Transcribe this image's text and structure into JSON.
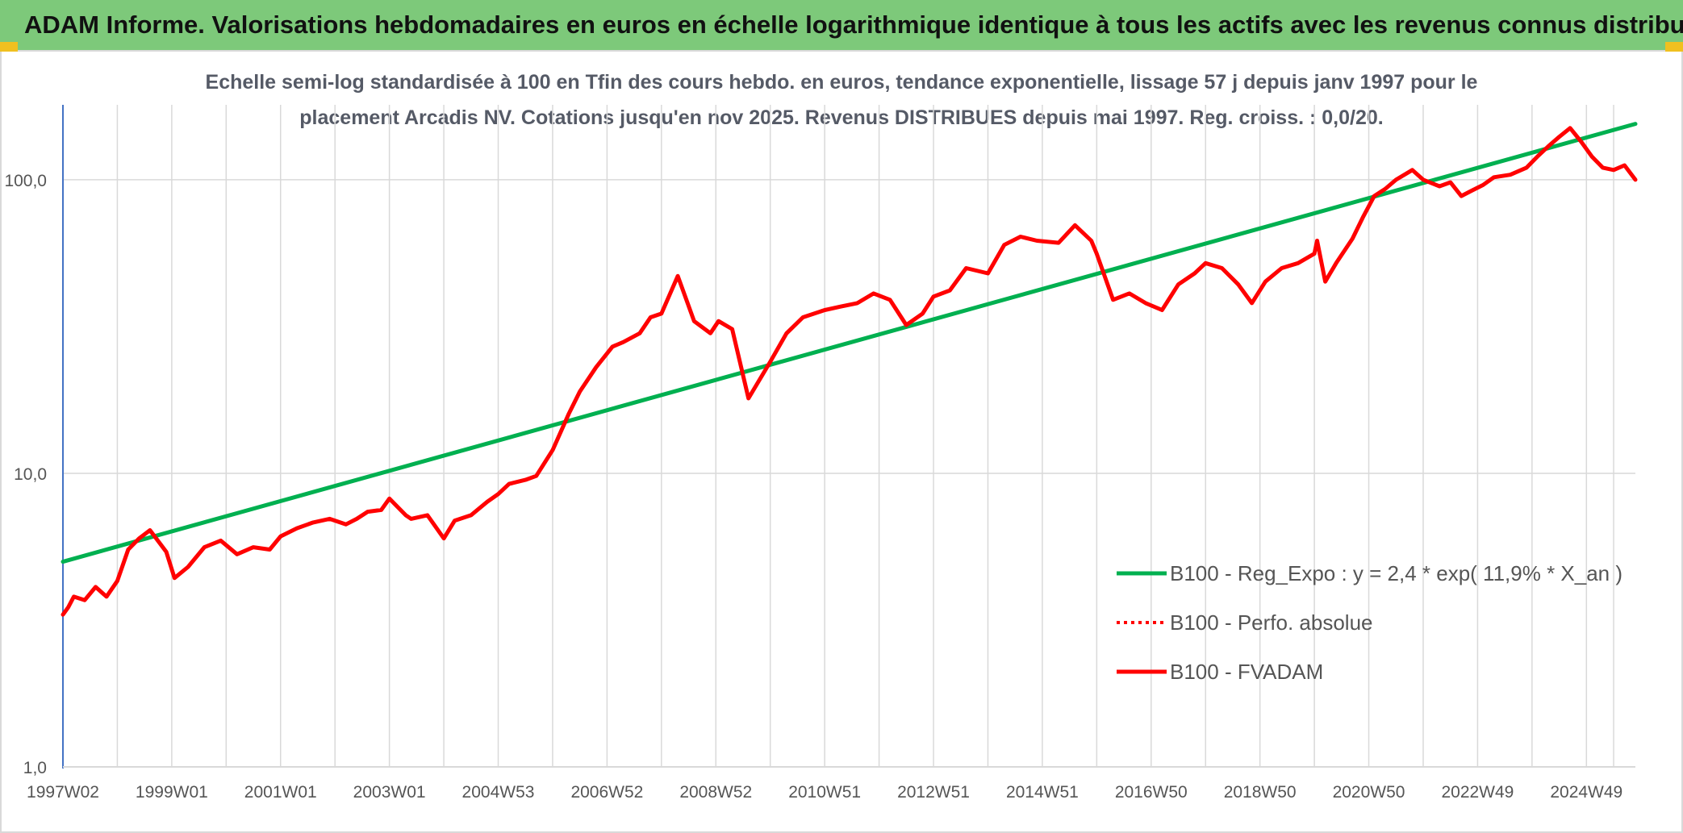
{
  "header": {
    "title": "ADAM Informe. Valorisations hebdomadaires en euros en échelle logarithmique identique à tous les actifs avec les revenus connus distribués"
  },
  "chart_data": {
    "type": "line",
    "title_line1": "Echelle semi-log standardisée à 100 en Tfin des cours hebdo. en euros, tendance exponentielle, lissage 57 j depuis janv 1997 pour le",
    "title_line2": "placement Arcadis NV. Cotations jusqu'en nov 2025. Revenus DISTRIBUES depuis mai 1997. Reg. croiss. : 0,0/20.",
    "y_scale": "log",
    "ylim": [
      1,
      180
    ],
    "y_ticks": [
      {
        "value": 1,
        "label": "1,0"
      },
      {
        "value": 10,
        "label": "10,0"
      },
      {
        "value": 100,
        "label": "100,0"
      }
    ],
    "xlim": [
      1997.0,
      2025.9
    ],
    "x_ticks": [
      {
        "value": 1997.0,
        "label": "1997W02"
      },
      {
        "value": 1999.0,
        "label": "1999W01"
      },
      {
        "value": 2001.0,
        "label": "2001W01"
      },
      {
        "value": 2003.0,
        "label": "2003W01"
      },
      {
        "value": 2005.0,
        "label": "2004W53"
      },
      {
        "value": 2007.0,
        "label": "2006W52"
      },
      {
        "value": 2009.0,
        "label": "2008W52"
      },
      {
        "value": 2011.0,
        "label": "2010W51"
      },
      {
        "value": 2013.0,
        "label": "2012W51"
      },
      {
        "value": 2015.0,
        "label": "2014W51"
      },
      {
        "value": 2017.0,
        "label": "2016W50"
      },
      {
        "value": 2019.0,
        "label": "2018W50"
      },
      {
        "value": 2021.0,
        "label": "2020W50"
      },
      {
        "value": 2023.0,
        "label": "2022W49"
      },
      {
        "value": 2025.0,
        "label": "2024W49"
      }
    ],
    "grid": true,
    "legend_position": "bottom-right",
    "series": [
      {
        "name": "B100 - Reg_Expo : y = 2,4 * exp( 11,9% * X_an )",
        "color": "#00b050",
        "style": "solid",
        "x": [
          1997.0,
          2025.9
        ],
        "y": [
          5.0,
          155.0
        ]
      },
      {
        "name": "B100 - Perfo. absolue",
        "color": "#ff0000",
        "style": "dotted",
        "x": [],
        "y": []
      },
      {
        "name": "B100 - FVADAM",
        "color": "#ff0000",
        "style": "solid",
        "x": [
          1997.0,
          1997.1,
          1997.2,
          1997.4,
          1997.6,
          1997.8,
          1998.0,
          1998.2,
          1998.4,
          1998.6,
          1998.9,
          1999.05,
          1999.3,
          1999.6,
          1999.9,
          2000.2,
          2000.5,
          2000.8,
          2001.0,
          2001.3,
          2001.6,
          2001.9,
          2002.2,
          2002.4,
          2002.6,
          2002.85,
          2003.0,
          2003.3,
          2003.4,
          2003.7,
          2004.0,
          2004.2,
          2004.5,
          2004.8,
          2005.0,
          2005.2,
          2005.5,
          2005.7,
          2006.0,
          2006.3,
          2006.5,
          2006.8,
          2007.1,
          2007.3,
          2007.6,
          2007.8,
          2008.0,
          2008.3,
          2008.6,
          2008.9,
          2009.05,
          2009.3,
          2009.6,
          2010.0,
          2010.3,
          2010.6,
          2011.0,
          2011.3,
          2011.6,
          2011.9,
          2012.2,
          2012.5,
          2012.8,
          2013.0,
          2013.3,
          2013.6,
          2014.0,
          2014.3,
          2014.6,
          2014.9,
          2015.3,
          2015.6,
          2015.9,
          2016.0,
          2016.3,
          2016.6,
          2016.9,
          2017.2,
          2017.5,
          2017.8,
          2018.0,
          2018.3,
          2018.6,
          2018.85,
          2019.1,
          2019.4,
          2019.7,
          2020.0,
          2020.05,
          2020.2,
          2020.4,
          2020.7,
          2020.9,
          2021.1,
          2021.3,
          2021.5,
          2021.8,
          2022.0,
          2022.3,
          2022.5,
          2022.7,
          2022.9,
          2023.1,
          2023.3,
          2023.6,
          2023.9,
          2024.1,
          2024.3,
          2024.5,
          2024.7,
          2024.9,
          2025.1,
          2025.3,
          2025.5,
          2025.7,
          2025.9
        ],
        "y": [
          3.3,
          3.5,
          3.8,
          3.7,
          4.1,
          3.8,
          4.3,
          5.5,
          6.0,
          6.4,
          5.4,
          4.4,
          4.8,
          5.6,
          5.9,
          5.3,
          5.6,
          5.5,
          6.1,
          6.5,
          6.8,
          7.0,
          6.7,
          7.0,
          7.4,
          7.5,
          8.2,
          7.2,
          7.0,
          7.2,
          6.0,
          6.9,
          7.2,
          8.0,
          8.5,
          9.2,
          9.5,
          9.8,
          12.0,
          16.0,
          19.0,
          23.0,
          27.0,
          28.0,
          30.0,
          34.0,
          35.0,
          47.0,
          33.0,
          30.0,
          33.0,
          31.0,
          18.0,
          24.0,
          30.0,
          34.0,
          36.0,
          37.0,
          38.0,
          41.0,
          39.0,
          32.0,
          35.0,
          40.0,
          42.0,
          50.0,
          48.0,
          60.0,
          64.0,
          62.0,
          61.0,
          70.0,
          62.0,
          56.0,
          39.0,
          41.0,
          38.0,
          36.0,
          44.0,
          48.0,
          52.0,
          50.0,
          44.0,
          38.0,
          45.0,
          50.0,
          52.0,
          56.0,
          62.0,
          45.0,
          52.0,
          63.0,
          75.0,
          88.0,
          93.0,
          100.0,
          108.0,
          100.0,
          95.0,
          98.0,
          88.0,
          92.0,
          96.0,
          102.0,
          104.0,
          110.0,
          120.0,
          130.0,
          140.0,
          150.0,
          135.0,
          120.0,
          110.0,
          108.0,
          112.0,
          100.0
        ]
      }
    ]
  }
}
